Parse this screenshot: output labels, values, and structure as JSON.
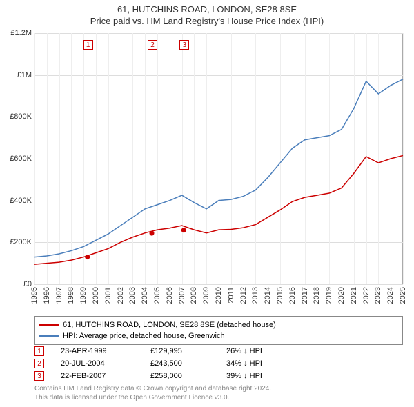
{
  "title": {
    "line1": "61, HUTCHINS ROAD, LONDON, SE28 8SE",
    "line2": "Price paid vs. HM Land Registry's House Price Index (HPI)"
  },
  "chart": {
    "type": "line",
    "background_color": "#ffffff",
    "grid_color_h": "#dddddd",
    "grid_color_v": "#eeeeee",
    "border_color": "#aaaaaa",
    "x": {
      "min": 1995,
      "max": 2025,
      "ticks": [
        1995,
        1996,
        1997,
        1998,
        1999,
        2000,
        2001,
        2002,
        2003,
        2004,
        2005,
        2006,
        2007,
        2008,
        2009,
        2010,
        2011,
        2012,
        2013,
        2014,
        2015,
        2016,
        2017,
        2018,
        2019,
        2020,
        2021,
        2022,
        2023,
        2024,
        2025
      ],
      "label_fontsize": 11
    },
    "y": {
      "min": 0,
      "max": 1200000,
      "ticks": [
        0,
        200000,
        400000,
        600000,
        800000,
        1000000,
        1200000
      ],
      "tick_labels": [
        "£0",
        "£200K",
        "£400K",
        "£600K",
        "£800K",
        "£1M",
        "£1.2M"
      ],
      "label_fontsize": 11
    },
    "series": [
      {
        "name": "property",
        "label": "61, HUTCHINS ROAD, LONDON, SE28 8SE (detached house)",
        "color": "#cc0000",
        "line_width": 1.5,
        "x": [
          1995,
          1996,
          1997,
          1998,
          1999,
          2000,
          2001,
          2002,
          2003,
          2004,
          2005,
          2006,
          2007,
          2008,
          2009,
          2010,
          2011,
          2012,
          2013,
          2014,
          2015,
          2016,
          2017,
          2018,
          2019,
          2020,
          2021,
          2022,
          2023,
          2024,
          2025
        ],
        "y": [
          95000,
          100000,
          105000,
          115000,
          130000,
          150000,
          170000,
          200000,
          225000,
          245000,
          260000,
          268000,
          280000,
          260000,
          245000,
          260000,
          262000,
          270000,
          285000,
          320000,
          355000,
          395000,
          415000,
          425000,
          435000,
          460000,
          530000,
          610000,
          580000,
          600000,
          615000
        ]
      },
      {
        "name": "hpi",
        "label": "HPI: Average price, detached house, Greenwich",
        "color": "#4a7ebb",
        "line_width": 1.5,
        "x": [
          1995,
          1996,
          1997,
          1998,
          1999,
          2000,
          2001,
          2002,
          2003,
          2004,
          2005,
          2006,
          2007,
          2008,
          2009,
          2010,
          2011,
          2012,
          2013,
          2014,
          2015,
          2016,
          2017,
          2018,
          2019,
          2020,
          2021,
          2022,
          2023,
          2024,
          2025
        ],
        "y": [
          130000,
          135000,
          145000,
          160000,
          180000,
          210000,
          240000,
          280000,
          320000,
          360000,
          380000,
          400000,
          425000,
          390000,
          360000,
          400000,
          405000,
          420000,
          450000,
          510000,
          580000,
          650000,
          690000,
          700000,
          710000,
          740000,
          840000,
          970000,
          910000,
          950000,
          980000
        ]
      }
    ],
    "markers": [
      {
        "num": "1",
        "x_year": 1999.31,
        "y_value": 129995,
        "color": "#cc0000"
      },
      {
        "num": "2",
        "x_year": 2004.55,
        "y_value": 243500,
        "color": "#cc0000"
      },
      {
        "num": "3",
        "x_year": 2007.15,
        "y_value": 258000,
        "color": "#cc0000"
      }
    ],
    "marker_dot_radius": 3.5
  },
  "legend": {
    "items": [
      {
        "color": "#cc0000",
        "label": "61, HUTCHINS ROAD, LONDON, SE28 8SE (detached house)"
      },
      {
        "color": "#4a7ebb",
        "label": "HPI: Average price, detached house, Greenwich"
      }
    ]
  },
  "transactions": [
    {
      "num": "1",
      "color": "#cc0000",
      "date": "23-APR-1999",
      "price": "£129,995",
      "delta": "26% ↓ HPI"
    },
    {
      "num": "2",
      "color": "#cc0000",
      "date": "20-JUL-2004",
      "price": "£243,500",
      "delta": "34% ↓ HPI"
    },
    {
      "num": "3",
      "color": "#cc0000",
      "date": "22-FEB-2007",
      "price": "£258,000",
      "delta": "39% ↓ HPI"
    }
  ],
  "footer": {
    "line1": "Contains HM Land Registry data © Crown copyright and database right 2024.",
    "line2": "This data is licensed under the Open Government Licence v3.0."
  }
}
